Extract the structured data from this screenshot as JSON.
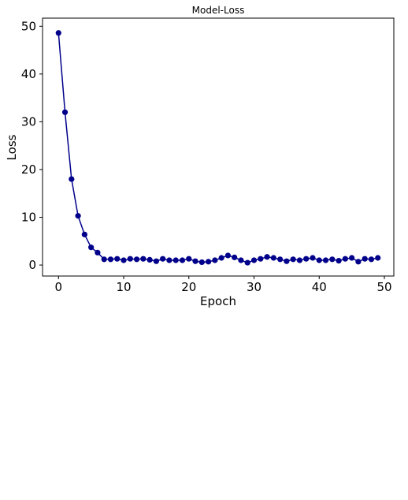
{
  "chart_data": {
    "type": "line",
    "title": "Model-Loss",
    "xlabel": "Epoch",
    "ylabel": "Loss",
    "xlim": [
      -2.45,
      51.45
    ],
    "ylim": [
      -2.3,
      51.7
    ],
    "xticks": [
      0,
      10,
      20,
      30,
      40,
      50
    ],
    "yticks": [
      0,
      10,
      20,
      30,
      40,
      50
    ],
    "grid": false,
    "series": [
      {
        "color": "#00008B",
        "marker": "circle",
        "x": [
          0,
          1,
          2,
          3,
          4,
          5,
          6,
          7,
          8,
          9,
          10,
          11,
          12,
          13,
          14,
          15,
          16,
          17,
          18,
          19,
          20,
          21,
          22,
          23,
          24,
          25,
          26,
          27,
          28,
          29,
          30,
          31,
          32,
          33,
          34,
          35,
          36,
          37,
          38,
          39,
          40,
          41,
          42,
          43,
          44,
          45,
          46,
          47,
          48,
          49
        ],
        "y": [
          48.6,
          32.0,
          18.0,
          10.3,
          6.4,
          3.7,
          2.6,
          1.2,
          1.2,
          1.3,
          1.0,
          1.3,
          1.2,
          1.3,
          1.1,
          0.8,
          1.3,
          1.0,
          1.0,
          1.0,
          1.3,
          0.8,
          0.6,
          0.7,
          1.0,
          1.5,
          2.0,
          1.6,
          1.0,
          0.5,
          1.0,
          1.3,
          1.7,
          1.5,
          1.2,
          0.8,
          1.2,
          1.0,
          1.3,
          1.5,
          1.0,
          1.0,
          1.2,
          0.9,
          1.3,
          1.5,
          0.7,
          1.3,
          1.2,
          1.5
        ]
      }
    ]
  }
}
